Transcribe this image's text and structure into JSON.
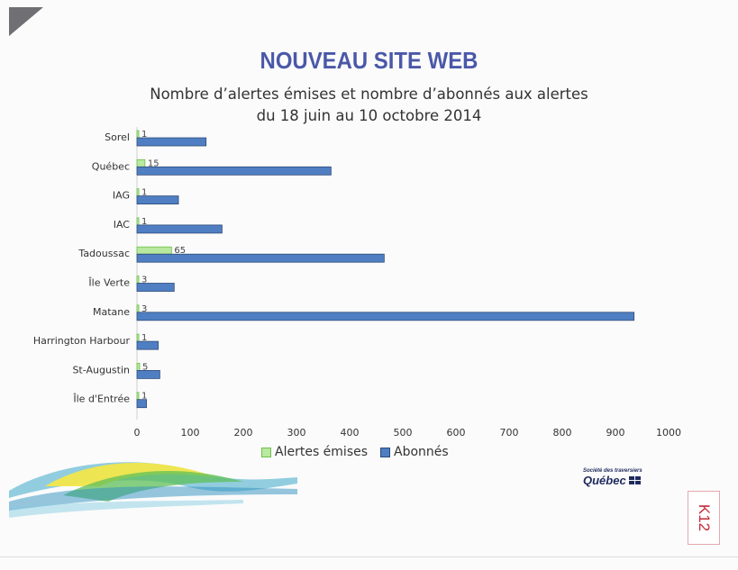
{
  "heading": "NOUVEAU SITE WEB",
  "subtitle_line1": "Nombre d’alertes émises et nombre d’abonnés aux alertes",
  "subtitle_line2": "du 18 juin au 10 octobre 2014",
  "logo": {
    "small_text": "Société des traversiers",
    "big_text": "Québec"
  },
  "stamp_text": "K12",
  "colors": {
    "alertes": "#b9e89f",
    "alertes_border": "#6fbf4a",
    "abonnes": "#4f7fc2",
    "abonnes_border": "#2f4a7a",
    "heading": "#4a58a8",
    "stamp": "#c52a3a"
  },
  "chart_data": {
    "type": "bar",
    "orientation": "horizontal",
    "categories": [
      "Sorel",
      "Québec",
      "IAG",
      "IAC",
      "Tadoussac",
      "Île Verte",
      "Matane",
      "Harrington Harbour",
      "St-Augustin",
      "Île d'Entrée"
    ],
    "series": [
      {
        "name": "Alertes émises",
        "values": [
          1,
          15,
          1,
          1,
          65,
          3,
          3,
          1,
          5,
          1
        ],
        "data_labels": [
          "1",
          "15",
          "1",
          "1",
          "65",
          "3",
          "3",
          "1",
          "5",
          "1"
        ]
      },
      {
        "name": "Abonnés",
        "values": [
          130,
          365,
          78,
          160,
          465,
          70,
          935,
          40,
          43,
          18
        ]
      }
    ],
    "xlim": [
      0,
      1000
    ],
    "xticks": [
      "0",
      "100",
      "200",
      "300",
      "400",
      "500",
      "600",
      "700",
      "800",
      "900",
      "1000"
    ],
    "legend": [
      "Alertes émises",
      "Abonnés"
    ],
    "legend_position": "bottom",
    "grid": false
  }
}
